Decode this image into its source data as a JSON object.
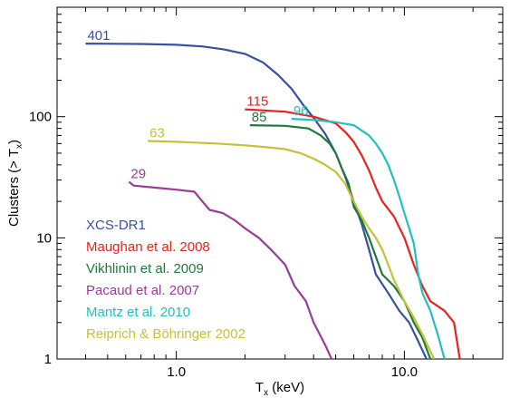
{
  "chart_data": {
    "type": "line",
    "xlabel": "T",
    "xlabel_sub": "x",
    "xlabel_unit": " (keV)",
    "ylabel": "Clusters (> T",
    "ylabel_sub": "x",
    "ylabel_end": ")",
    "x_scale": "log",
    "y_scale": "log",
    "xlim": [
      0.3,
      27
    ],
    "ylim": [
      1,
      800
    ],
    "x_ticks": [
      {
        "value": 1.0,
        "label": "1.0"
      },
      {
        "value": 10.0,
        "label": "10.0"
      }
    ],
    "y_ticks": [
      {
        "value": 1,
        "label": "1"
      },
      {
        "value": 10,
        "label": "10"
      },
      {
        "value": 100,
        "label": "100"
      }
    ],
    "grid": false,
    "legend_position": "bottom-left",
    "series": [
      {
        "name": "XCS-DR1",
        "color": "#3a4fa0",
        "count_label": "401",
        "count_at": [
          0.4,
          401
        ],
        "points": [
          [
            0.4,
            401
          ],
          [
            0.7,
            398
          ],
          [
            1.0,
            392
          ],
          [
            1.3,
            380
          ],
          [
            1.6,
            360
          ],
          [
            2.0,
            330
          ],
          [
            2.4,
            280
          ],
          [
            2.8,
            220
          ],
          [
            3.2,
            170
          ],
          [
            3.6,
            125
          ],
          [
            4.0,
            98
          ],
          [
            4.5,
            72
          ],
          [
            5.0,
            50
          ],
          [
            5.5,
            32
          ],
          [
            6.0,
            20
          ],
          [
            6.5,
            13
          ],
          [
            7.0,
            8
          ],
          [
            7.5,
            5
          ],
          [
            8.5,
            3.5
          ],
          [
            9.5,
            2.5
          ],
          [
            10.5,
            2
          ],
          [
            11.5,
            1.4
          ],
          [
            12.5,
            1
          ]
        ]
      },
      {
        "name": "Maughan et al. 2008",
        "color": "#e52420",
        "count_label": "115",
        "count_at": [
          2.0,
          115
        ],
        "points": [
          [
            2.0,
            115
          ],
          [
            3.0,
            110
          ],
          [
            4.0,
            100
          ],
          [
            5.0,
            88
          ],
          [
            5.5,
            75
          ],
          [
            6.0,
            62
          ],
          [
            6.5,
            48
          ],
          [
            7.0,
            36
          ],
          [
            7.5,
            26
          ],
          [
            8.0,
            20
          ],
          [
            9.0,
            15
          ],
          [
            10.0,
            10
          ],
          [
            11.0,
            6
          ],
          [
            12.0,
            4
          ],
          [
            13.0,
            3
          ],
          [
            15.0,
            2.5
          ],
          [
            16.5,
            2
          ],
          [
            17.5,
            1
          ]
        ]
      },
      {
        "name": "Vikhlinin et al. 2009",
        "color": "#1e7a3c",
        "count_label": "85",
        "count_at": [
          2.1,
          85
        ],
        "points": [
          [
            2.1,
            85
          ],
          [
            3.0,
            84
          ],
          [
            3.8,
            80
          ],
          [
            4.3,
            70
          ],
          [
            4.7,
            60
          ],
          [
            5.0,
            50
          ],
          [
            5.3,
            38
          ],
          [
            5.7,
            28
          ],
          [
            6.0,
            18
          ],
          [
            6.5,
            14
          ],
          [
            7.0,
            10
          ],
          [
            7.5,
            7
          ],
          [
            8.0,
            5
          ],
          [
            9.0,
            4
          ],
          [
            10.0,
            3
          ],
          [
            11.0,
            2
          ],
          [
            12.0,
            1.5
          ],
          [
            13.0,
            1
          ]
        ]
      },
      {
        "name": "Pacaud et al. 2007",
        "color": "#9a3b96",
        "count_label": "29",
        "count_at": [
          0.62,
          29
        ],
        "points": [
          [
            0.62,
            29
          ],
          [
            0.65,
            27
          ],
          [
            0.8,
            26
          ],
          [
            1.0,
            25
          ],
          [
            1.2,
            24
          ],
          [
            1.3,
            20
          ],
          [
            1.4,
            17
          ],
          [
            1.6,
            16
          ],
          [
            1.8,
            14
          ],
          [
            2.0,
            12
          ],
          [
            2.3,
            10
          ],
          [
            2.6,
            8
          ],
          [
            3.0,
            6
          ],
          [
            3.3,
            4
          ],
          [
            3.7,
            3
          ],
          [
            4.0,
            2
          ],
          [
            4.5,
            1.3
          ],
          [
            4.8,
            1
          ]
        ]
      },
      {
        "name": "Mantz et al. 2010",
        "color": "#22bfc0",
        "count_label": "96",
        "count_at": [
          3.2,
          96
        ],
        "points": [
          [
            3.2,
            96
          ],
          [
            4.0,
            94
          ],
          [
            5.0,
            90
          ],
          [
            6.0,
            85
          ],
          [
            7.0,
            70
          ],
          [
            7.5,
            60
          ],
          [
            8.0,
            50
          ],
          [
            8.5,
            40
          ],
          [
            9.0,
            30
          ],
          [
            9.5,
            22
          ],
          [
            10.0,
            16
          ],
          [
            10.5,
            12
          ],
          [
            11.0,
            9
          ],
          [
            11.5,
            5
          ],
          [
            12.0,
            3.5
          ],
          [
            13.0,
            2.5
          ],
          [
            14.0,
            1.6
          ],
          [
            15.0,
            1
          ]
        ]
      },
      {
        "name": "Reiprich & Böhringer 2002",
        "color": "#c4c23a",
        "count_label": "63",
        "count_at": [
          0.75,
          63
        ],
        "points": [
          [
            0.75,
            63
          ],
          [
            1.0,
            62
          ],
          [
            1.5,
            60
          ],
          [
            2.0,
            58
          ],
          [
            2.5,
            56
          ],
          [
            3.0,
            54
          ],
          [
            3.5,
            50
          ],
          [
            4.0,
            45
          ],
          [
            4.5,
            40
          ],
          [
            5.0,
            35
          ],
          [
            5.5,
            28
          ],
          [
            6.0,
            20
          ],
          [
            6.5,
            15
          ],
          [
            7.0,
            12
          ],
          [
            7.5,
            10
          ],
          [
            8.0,
            8
          ],
          [
            8.5,
            6
          ],
          [
            9.0,
            4.5
          ],
          [
            10.0,
            3
          ],
          [
            11.0,
            2.2
          ],
          [
            12.0,
            1.6
          ],
          [
            13.5,
            1
          ]
        ]
      }
    ]
  }
}
